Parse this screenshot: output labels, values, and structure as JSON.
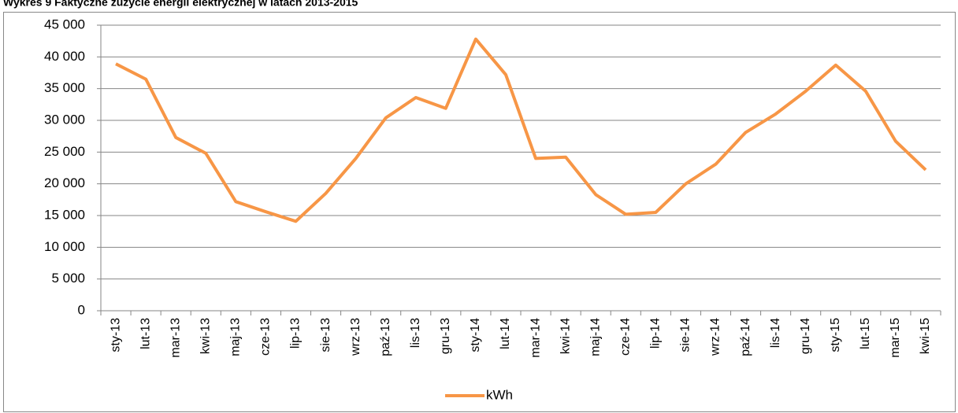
{
  "chart_data": {
    "type": "line",
    "title": "Wykres 9 Faktyczne zużycie energii elektrycznej w latach 2013-2015",
    "categories": [
      "sty-13",
      "lut-13",
      "mar-13",
      "kwi-13",
      "maj-13",
      "cze-13",
      "lip-13",
      "sie-13",
      "wrz-13",
      "paź-13",
      "lis-13",
      "gru-13",
      "sty-14",
      "lut-14",
      "mar-14",
      "kwi-14",
      "maj-14",
      "cze-14",
      "lip-14",
      "sie-14",
      "wrz-14",
      "paź-14",
      "lis-14",
      "gru-14",
      "sty-15",
      "lut-15",
      "mar-15",
      "kwi-15"
    ],
    "series": [
      {
        "name": "kWh",
        "color": "#f79646",
        "values": [
          38900,
          36500,
          27300,
          24800,
          17200,
          15600,
          14100,
          18500,
          24000,
          30400,
          33600,
          31900,
          42800,
          37200,
          24000,
          24200,
          18300,
          15200,
          15500,
          20000,
          23100,
          28100,
          31000,
          34600,
          38700,
          34600,
          26700,
          22200
        ]
      }
    ],
    "ylim": [
      0,
      45000
    ],
    "yticks": [
      0,
      {
        "value": 5000,
        "label": "5 000"
      },
      {
        "value": 10000,
        "label": "10 000"
      },
      {
        "value": 15000,
        "label": "15 000"
      },
      {
        "value": 20000,
        "label": "20 000"
      },
      {
        "value": 25000,
        "label": "25 000"
      },
      {
        "value": 30000,
        "label": "30 000"
      },
      {
        "value": 35000,
        "label": "35 000"
      },
      {
        "value": 40000,
        "label": "40 000"
      },
      {
        "value": 45000,
        "label": "45 000"
      }
    ],
    "grid": true,
    "legend": "bottom"
  }
}
